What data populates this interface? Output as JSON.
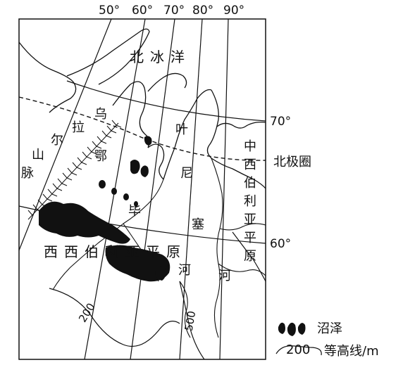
{
  "map": {
    "longitudes": [
      "50°",
      "60°",
      "70°",
      "80°",
      "90°"
    ],
    "latitudes": [
      "70°",
      "60°"
    ],
    "arctic_circle_label": "北极圈",
    "ocean_label": "北冰洋",
    "ural_mountains": [
      "乌",
      "拉",
      "尔",
      "山",
      "脉"
    ],
    "gulf_ob": "鄂",
    "river_ob": "毕",
    "yenisei": [
      "叶",
      "尼",
      "塞",
      "河"
    ],
    "river_char": "河",
    "west_siberian_plain": "西西伯利亚平原",
    "central_siberian_plain": [
      "中",
      "西",
      "伯",
      "利",
      "亚",
      "平",
      "原"
    ],
    "contour_200": "200",
    "contour_500": "500"
  },
  "legend": {
    "swamp_label": "沼泽",
    "contour_value": "200",
    "contour_label": "等高线/m"
  }
}
